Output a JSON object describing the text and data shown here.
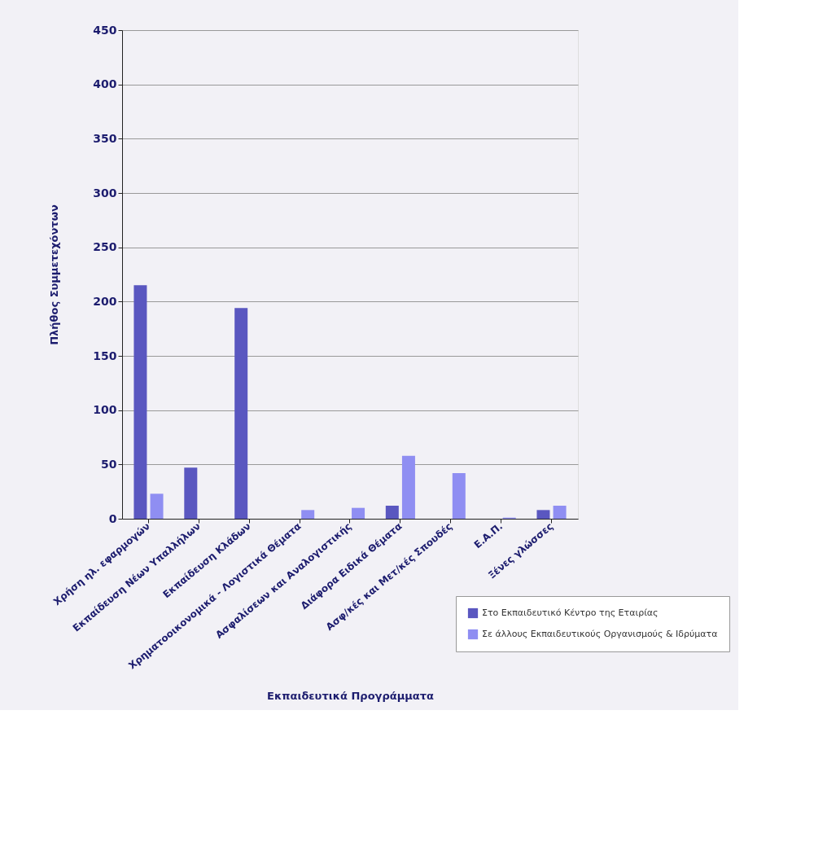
{
  "chart_data": {
    "type": "bar",
    "categories": [
      "Χρήση ηλ. εφαρμογών",
      "Εκπαίδευση Νέων Υπαλλήλων",
      "Εκπαίδευση Κλάδων",
      "Χρηματοοικονομικά - Λογιστικά Θέματα",
      "Ασφαλίσεων και Αναλογιστικής",
      "Διάφορα Ειδικά Θέματα",
      "Ασφ/κές και Μετ/κές Σπουδές",
      "Ε.Α.Π.",
      "Ξένες γλώσσες"
    ],
    "series": [
      {
        "name": "Στο Εκπαιδευτικό Κέντρο της Εταιρίας",
        "color": "#5a57c0",
        "values": [
          215,
          47,
          194,
          null,
          null,
          12,
          null,
          null,
          8
        ]
      },
      {
        "name": "Σε άλλους Εκπαιδευτικούς Οργανισμούς & Ιδρύματα",
        "color": "#8f8ef2",
        "values": [
          23,
          null,
          null,
          8,
          10,
          58,
          42,
          1,
          12
        ]
      }
    ],
    "xlabel": "Εκπαιδευτικά Προγράμματα",
    "ylabel": "Πλήθος Συμμετεχόντων",
    "ylim": [
      0,
      450
    ],
    "yticks": [
      0,
      50,
      100,
      150,
      200,
      250,
      300,
      350,
      400,
      450
    ],
    "grid": "y",
    "legend": "bottom right"
  }
}
